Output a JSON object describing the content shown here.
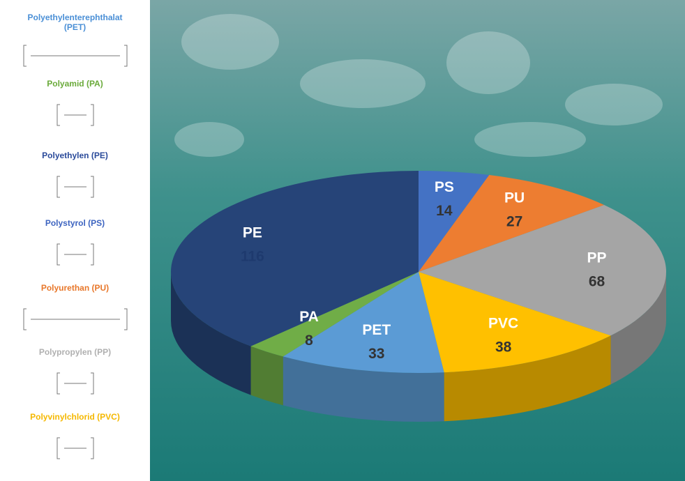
{
  "chart_data": {
    "type": "pie",
    "categories": [
      "PS",
      "PU",
      "PP",
      "PVC",
      "PET",
      "PA",
      "PE"
    ],
    "values": [
      14,
      27,
      68,
      38,
      33,
      8,
      116
    ],
    "colors": [
      "#4472c4",
      "#ed7d31",
      "#a5a5a5",
      "#ffc000",
      "#5b9bd5",
      "#70ad47",
      "#264478"
    ],
    "legend": [
      {
        "label": "Polyethylenterephthalat (PET)",
        "color": "#4a8fd6"
      },
      {
        "label": "Polyamid (PA)",
        "color": "#6aaa3a"
      },
      {
        "label": "Polyethylen (PE)",
        "color": "#2a4a9a"
      },
      {
        "label": "Polystyrol (PS)",
        "color": "#3d64c0"
      },
      {
        "label": "Polyurethan (PU)",
        "color": "#e8772a"
      },
      {
        "label": "Polypropylen (PP)",
        "color": "#b0b0b0"
      },
      {
        "label": "Polyvinylchlorid (PVC)",
        "color": "#f5b800"
      }
    ]
  }
}
